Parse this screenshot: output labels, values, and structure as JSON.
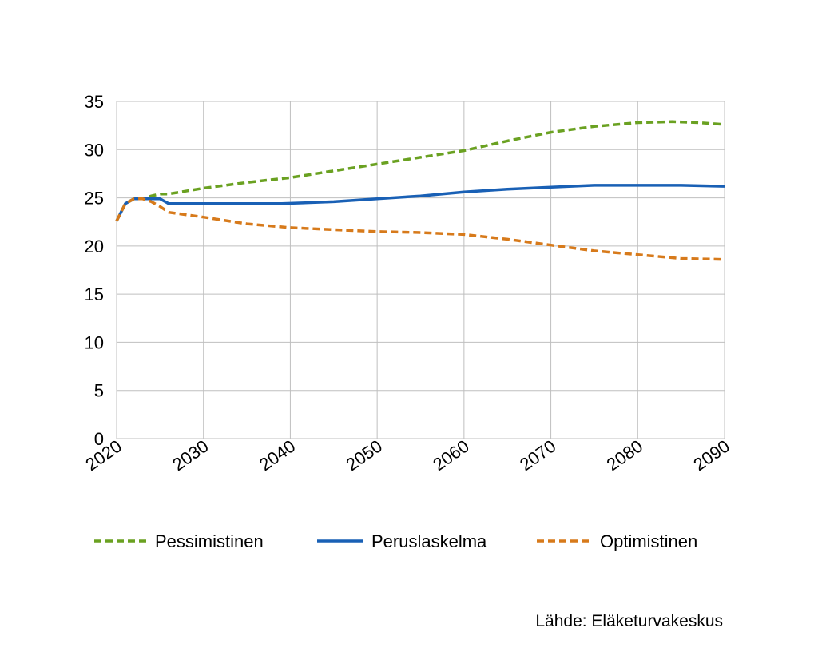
{
  "chart_data": {
    "type": "line",
    "title": "",
    "xlabel": "",
    "ylabel": "",
    "xlim": [
      2020,
      2090
    ],
    "ylim": [
      0,
      35
    ],
    "x_ticks": [
      "2020",
      "2030",
      "2040",
      "2050",
      "2060",
      "2070",
      "2080",
      "2090"
    ],
    "y_ticks": [
      "0",
      "5",
      "10",
      "15",
      "20",
      "25",
      "30",
      "35"
    ],
    "grid": true,
    "legend_position": "bottom",
    "series": [
      {
        "name": "Pessimistinen",
        "color": "#6aa121",
        "style": "dashed",
        "points": [
          [
            2020,
            22.6
          ],
          [
            2021,
            24.4
          ],
          [
            2022,
            24.9
          ],
          [
            2023,
            24.9
          ],
          [
            2024,
            25.2
          ],
          [
            2025,
            25.4
          ],
          [
            2026,
            25.4
          ],
          [
            2030,
            26.0
          ],
          [
            2035,
            26.6
          ],
          [
            2040,
            27.1
          ],
          [
            2045,
            27.8
          ],
          [
            2050,
            28.5
          ],
          [
            2055,
            29.2
          ],
          [
            2060,
            29.9
          ],
          [
            2065,
            30.9
          ],
          [
            2070,
            31.8
          ],
          [
            2075,
            32.4
          ],
          [
            2080,
            32.8
          ],
          [
            2084,
            32.9
          ],
          [
            2087,
            32.8
          ],
          [
            2090,
            32.6
          ]
        ]
      },
      {
        "name": "Peruslaskelma",
        "color": "#1960b5",
        "style": "solid",
        "points": [
          [
            2020,
            22.6
          ],
          [
            2021,
            24.4
          ],
          [
            2022,
            24.9
          ],
          [
            2023,
            24.9
          ],
          [
            2025,
            24.9
          ],
          [
            2026,
            24.4
          ],
          [
            2030,
            24.4
          ],
          [
            2035,
            24.4
          ],
          [
            2039,
            24.4
          ],
          [
            2045,
            24.6
          ],
          [
            2050,
            24.9
          ],
          [
            2055,
            25.2
          ],
          [
            2060,
            25.6
          ],
          [
            2065,
            25.9
          ],
          [
            2070,
            26.1
          ],
          [
            2075,
            26.3
          ],
          [
            2080,
            26.3
          ],
          [
            2085,
            26.3
          ],
          [
            2090,
            26.2
          ]
        ]
      },
      {
        "name": "Optimistinen",
        "color": "#d77a1b",
        "style": "dashed",
        "points": [
          [
            2020,
            22.6
          ],
          [
            2021,
            24.4
          ],
          [
            2022,
            24.9
          ],
          [
            2023,
            24.9
          ],
          [
            2024,
            24.6
          ],
          [
            2025,
            24.1
          ],
          [
            2026,
            23.5
          ],
          [
            2030,
            23.0
          ],
          [
            2035,
            22.3
          ],
          [
            2040,
            21.9
          ],
          [
            2045,
            21.7
          ],
          [
            2050,
            21.5
          ],
          [
            2055,
            21.4
          ],
          [
            2060,
            21.2
          ],
          [
            2065,
            20.7
          ],
          [
            2070,
            20.1
          ],
          [
            2075,
            19.5
          ],
          [
            2080,
            19.1
          ],
          [
            2085,
            18.7
          ],
          [
            2090,
            18.6
          ]
        ]
      }
    ],
    "source": "Lähde: Eläketurvakeskus"
  }
}
